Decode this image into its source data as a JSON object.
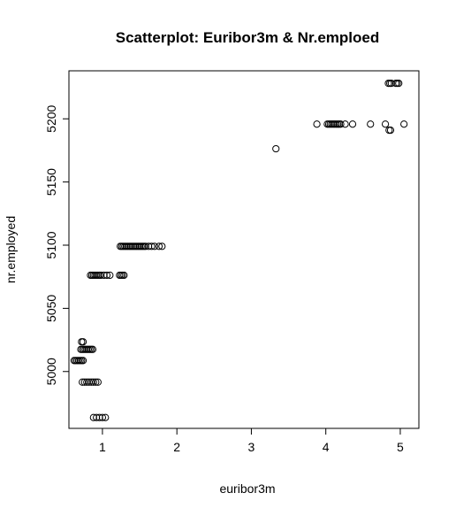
{
  "chart_data": {
    "type": "scatter",
    "title": "Scatterplot: Euribor3m & Nr.emploed",
    "xlabel": "euribor3m",
    "ylabel": "nr.employed",
    "xlim": [
      0.55,
      5.25
    ],
    "ylim": [
      4955,
      5238
    ],
    "x_ticks": [
      1,
      2,
      3,
      4,
      5
    ],
    "y_ticks": [
      5000,
      5050,
      5100,
      5150,
      5200
    ],
    "x_tick_labels": [
      "1",
      "2",
      "3",
      "4",
      "5"
    ],
    "y_tick_labels": [
      "5000",
      "5050",
      "5100",
      "5150",
      "5200"
    ],
    "grid": false,
    "marker": "open-circle",
    "colors": {
      "marker": "#000000",
      "axis": "#000000",
      "background": "#ffffff"
    },
    "series": [
      {
        "points": [
          [
            0.62,
            5008.7
          ],
          [
            0.64,
            5008.7
          ],
          [
            0.66,
            5008.7
          ],
          [
            0.68,
            5008.7
          ],
          [
            0.7,
            5008.7
          ],
          [
            0.72,
            5008.7
          ],
          [
            0.74,
            5008.7
          ],
          [
            0.71,
            5017.5
          ],
          [
            0.73,
            5017.5
          ],
          [
            0.75,
            5017.5
          ],
          [
            0.77,
            5017.5
          ],
          [
            0.79,
            5017.5
          ],
          [
            0.81,
            5017.5
          ],
          [
            0.83,
            5017.5
          ],
          [
            0.85,
            5017.5
          ],
          [
            0.87,
            5017.5
          ],
          [
            0.72,
            5023.5
          ],
          [
            0.74,
            5023.5
          ],
          [
            0.73,
            4991.6
          ],
          [
            0.76,
            4991.6
          ],
          [
            0.79,
            4991.6
          ],
          [
            0.82,
            4991.6
          ],
          [
            0.85,
            4991.6
          ],
          [
            0.88,
            4991.6
          ],
          [
            0.91,
            4991.6
          ],
          [
            0.94,
            4991.6
          ],
          [
            0.88,
            4963.6
          ],
          [
            0.92,
            4963.6
          ],
          [
            0.96,
            4963.6
          ],
          [
            1.0,
            4963.6
          ],
          [
            1.04,
            4963.6
          ],
          [
            0.84,
            5076.2
          ],
          [
            0.86,
            5076.2
          ],
          [
            0.88,
            5076.2
          ],
          [
            0.9,
            5076.2
          ],
          [
            0.92,
            5076.2
          ],
          [
            0.94,
            5076.2
          ],
          [
            0.96,
            5076.2
          ],
          [
            0.98,
            5076.2
          ],
          [
            1.02,
            5076.2
          ],
          [
            1.06,
            5076.2
          ],
          [
            1.1,
            5076.2
          ],
          [
            1.23,
            5076.2
          ],
          [
            1.25,
            5076.2
          ],
          [
            1.27,
            5076.2
          ],
          [
            1.29,
            5076.2
          ],
          [
            1.24,
            5099.1
          ],
          [
            1.26,
            5099.1
          ],
          [
            1.28,
            5099.1
          ],
          [
            1.3,
            5099.1
          ],
          [
            1.32,
            5099.1
          ],
          [
            1.34,
            5099.1
          ],
          [
            1.36,
            5099.1
          ],
          [
            1.38,
            5099.1
          ],
          [
            1.4,
            5099.1
          ],
          [
            1.42,
            5099.1
          ],
          [
            1.44,
            5099.1
          ],
          [
            1.46,
            5099.1
          ],
          [
            1.48,
            5099.1
          ],
          [
            1.5,
            5099.1
          ],
          [
            1.52,
            5099.1
          ],
          [
            1.54,
            5099.1
          ],
          [
            1.56,
            5099.1
          ],
          [
            1.58,
            5099.1
          ],
          [
            1.62,
            5099.1
          ],
          [
            1.66,
            5099.1
          ],
          [
            1.7,
            5099.1
          ],
          [
            1.76,
            5099.1
          ],
          [
            1.8,
            5099.1
          ],
          [
            3.33,
            5176.3
          ],
          [
            3.88,
            5195.8
          ],
          [
            4.02,
            5195.8
          ],
          [
            4.04,
            5195.8
          ],
          [
            4.06,
            5195.8
          ],
          [
            4.08,
            5195.8
          ],
          [
            4.1,
            5195.8
          ],
          [
            4.12,
            5195.8
          ],
          [
            4.14,
            5195.8
          ],
          [
            4.16,
            5195.8
          ],
          [
            4.18,
            5195.8
          ],
          [
            4.2,
            5195.8
          ],
          [
            4.26,
            5195.8
          ],
          [
            4.36,
            5195.8
          ],
          [
            4.6,
            5195.8
          ],
          [
            4.8,
            5195.8
          ],
          [
            5.05,
            5195.8
          ],
          [
            4.85,
            5191.0
          ],
          [
            4.87,
            5191.0
          ],
          [
            4.84,
            5228.1
          ],
          [
            4.86,
            5228.1
          ],
          [
            4.88,
            5228.1
          ],
          [
            4.94,
            5228.1
          ],
          [
            4.96,
            5228.1
          ],
          [
            4.98,
            5228.1
          ]
        ]
      }
    ]
  }
}
